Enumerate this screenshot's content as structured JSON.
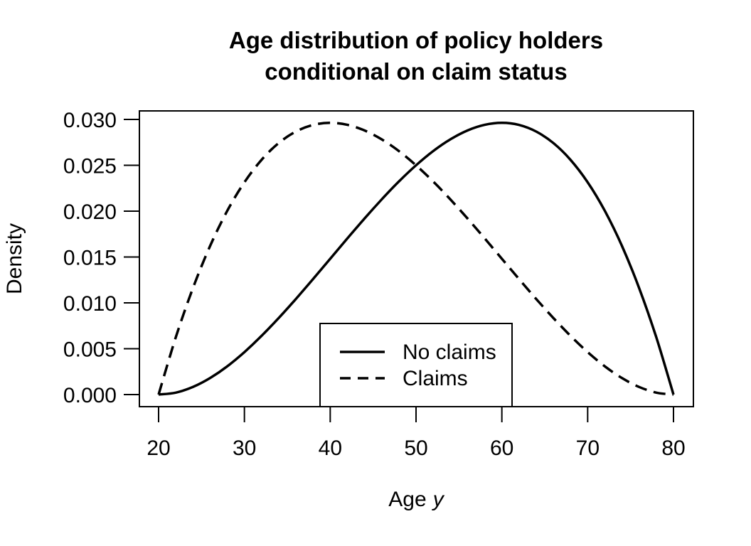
{
  "title": {
    "line1": "Age distribution of policy holders",
    "line2": "conditional on claim status"
  },
  "axes": {
    "x": {
      "label_prefix": "Age",
      "label_var": "y",
      "ticks": [
        {
          "v": 20,
          "label": "20"
        },
        {
          "v": 30,
          "label": "30"
        },
        {
          "v": 40,
          "label": "40"
        },
        {
          "v": 50,
          "label": "50"
        },
        {
          "v": 60,
          "label": "60"
        },
        {
          "v": 70,
          "label": "70"
        },
        {
          "v": 80,
          "label": "80"
        }
      ]
    },
    "y": {
      "label": "Density",
      "ticks": [
        {
          "v": 0.0,
          "label": "0.000"
        },
        {
          "v": 0.005,
          "label": "0.005"
        },
        {
          "v": 0.01,
          "label": "0.010"
        },
        {
          "v": 0.015,
          "label": "0.015"
        },
        {
          "v": 0.02,
          "label": "0.020"
        },
        {
          "v": 0.025,
          "label": "0.025"
        },
        {
          "v": 0.03,
          "label": "0.030"
        }
      ]
    }
  },
  "legend": {
    "items": [
      {
        "label": "No claims",
        "style": "solid"
      },
      {
        "label": "Claims",
        "style": "dashed"
      }
    ]
  },
  "colors": {
    "foreground": "#000000",
    "background": "#ffffff"
  },
  "chart_data": {
    "type": "line",
    "title": "Age distribution of policy holders conditional on claim status",
    "xlabel": "Age y",
    "ylabel": "Density",
    "xlim": [
      20,
      80
    ],
    "ylim": [
      0,
      0.03
    ],
    "grid": false,
    "legend_position": "inside-bottom-center",
    "x": [
      20,
      22,
      24,
      26,
      28,
      30,
      32,
      34,
      36,
      38,
      40,
      42,
      44,
      46,
      48,
      50,
      52,
      54,
      56,
      58,
      60,
      62,
      64,
      66,
      68,
      70,
      72,
      74,
      76,
      78,
      80
    ],
    "series": [
      {
        "name": "No claims",
        "dash": "solid",
        "values": [
          0,
          0.00021,
          0.00083,
          0.0018,
          0.00308,
          0.00463,
          0.0064,
          0.00835,
          0.01043,
          0.0126,
          0.01481,
          0.01703,
          0.0192,
          0.02128,
          0.02323,
          0.025,
          0.02655,
          0.02783,
          0.0288,
          0.02941,
          0.02963,
          0.0294,
          0.02868,
          0.02743,
          0.0256,
          0.02315,
          0.02003,
          0.0162,
          0.01161,
          0.00623,
          0
        ]
      },
      {
        "name": "Claims",
        "dash": "dashed",
        "values": [
          0,
          0.00623,
          0.01161,
          0.0162,
          0.02003,
          0.02315,
          0.0256,
          0.02743,
          0.02868,
          0.0294,
          0.02963,
          0.02941,
          0.0288,
          0.02783,
          0.02655,
          0.025,
          0.02323,
          0.02128,
          0.0192,
          0.01703,
          0.01481,
          0.0126,
          0.01043,
          0.00835,
          0.0064,
          0.00463,
          0.00308,
          0.0018,
          0.00083,
          0.00021,
          0
        ]
      }
    ]
  }
}
